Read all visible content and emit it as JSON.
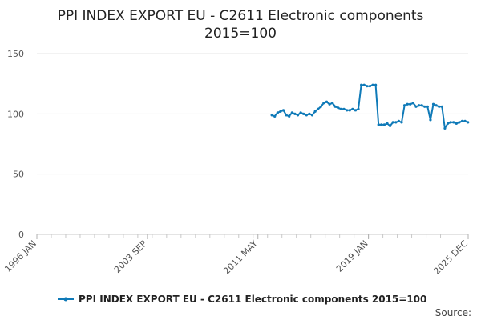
{
  "chart_data": {
    "type": "line",
    "title_line1": "PPI INDEX EXPORT EU - C2611 Electronic components",
    "title_line2": "2015=100",
    "xlabel": "",
    "ylabel": "",
    "ylim": [
      0,
      150
    ],
    "y_ticks": [
      0,
      50,
      100,
      150
    ],
    "x_ticks": [
      {
        "label": "1996 JAN",
        "t": 1996.0
      },
      {
        "label": "2003 SEP",
        "t": 2003.667
      },
      {
        "label": "2011 MAY",
        "t": 2011.333
      },
      {
        "label": "2019 JAN",
        "t": 2019.0
      },
      {
        "label": "2025 DEC",
        "t": 2025.917
      }
    ],
    "grid": "horizontal",
    "legend_position": "bottom",
    "series": [
      {
        "name": "PPI INDEX EXPORT EU - C2611 Electronic components 2015=100",
        "color": "#0f7ab8",
        "x": [
          2012.3,
          2012.5,
          2012.7,
          2012.9,
          2013.1,
          2013.3,
          2013.5,
          2013.7,
          2013.9,
          2014.1,
          2014.3,
          2014.5,
          2014.7,
          2014.9,
          2015.1,
          2015.3,
          2015.5,
          2015.7,
          2015.9,
          2016.1,
          2016.3,
          2016.5,
          2016.7,
          2016.9,
          2017.1,
          2017.3,
          2017.5,
          2017.7,
          2017.9,
          2018.1,
          2018.3,
          2018.5,
          2018.7,
          2018.9,
          2019.1,
          2019.3,
          2019.5,
          2019.7,
          2019.9,
          2020.1,
          2020.3,
          2020.5,
          2020.7,
          2020.9,
          2021.1,
          2021.3,
          2021.5,
          2021.7,
          2021.9,
          2022.1,
          2022.3,
          2022.5,
          2022.7,
          2022.9,
          2023.1,
          2023.3,
          2023.5,
          2023.7,
          2023.9,
          2024.1,
          2024.3,
          2024.5,
          2024.7,
          2024.9,
          2025.1,
          2025.3,
          2025.5,
          2025.7,
          2025.9
        ],
        "values": [
          99,
          98,
          101,
          102,
          103,
          99,
          98,
          101,
          100,
          99,
          101,
          100,
          99,
          100,
          99,
          102,
          104,
          106,
          109,
          110,
          108,
          109,
          106,
          105,
          104,
          104,
          103,
          103,
          104,
          103,
          104,
          124,
          124,
          123,
          123,
          124,
          124,
          91,
          91,
          91,
          92,
          90,
          93,
          93,
          94,
          93,
          107,
          108,
          108,
          109,
          106,
          107,
          107,
          106,
          106,
          95,
          108,
          107,
          106,
          106,
          88,
          92,
          93,
          93,
          92,
          93,
          94,
          94,
          93
        ]
      }
    ]
  },
  "legend": {
    "label": "PPI INDEX EXPORT EU - C2611 Electronic components 2015=100"
  },
  "source": {
    "label": "Source:"
  }
}
